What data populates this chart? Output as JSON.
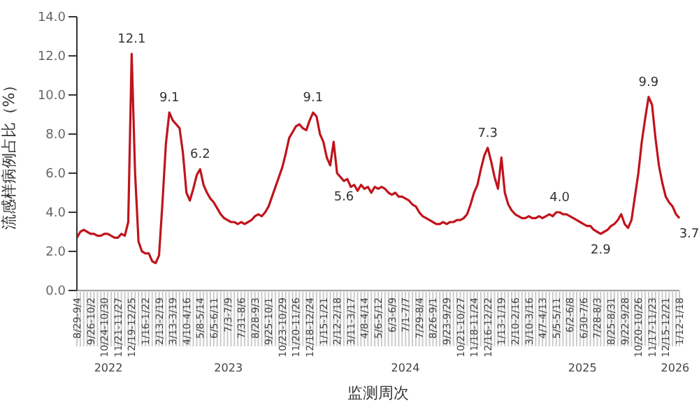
{
  "chart_data": {
    "type": "line",
    "ylabel": "流感样病例占比（%）",
    "xlabel": "监测周次",
    "categories": [
      "8/29-9/4",
      null,
      null,
      null,
      "9/26-10/2",
      null,
      null,
      null,
      "10/24-10/30",
      null,
      null,
      null,
      "11/21-11/27",
      null,
      null,
      null,
      "12/19-12/25",
      null,
      null,
      null,
      "1/16-1/22",
      null,
      null,
      null,
      "2/13-2/19",
      null,
      null,
      null,
      "3/13-3/19",
      null,
      null,
      null,
      "4/10-4/16",
      null,
      null,
      null,
      "5/8-5/14",
      null,
      null,
      null,
      "6/5-6/11",
      null,
      null,
      null,
      "7/3-7/9",
      null,
      null,
      null,
      "7/31-8/6",
      null,
      null,
      null,
      "8/28-9/3",
      null,
      null,
      null,
      "9/25-10/1",
      null,
      null,
      null,
      "10/23-10/29",
      null,
      null,
      null,
      "11/20-11/26",
      null,
      null,
      null,
      "12/18-12/24",
      null,
      null,
      null,
      "1/15-1/21",
      null,
      null,
      null,
      "2/12-2/18",
      null,
      null,
      null,
      "3/11-3/17",
      null,
      null,
      null,
      "4/8-4/14",
      null,
      null,
      null,
      "5/6-5/12",
      null,
      null,
      null,
      "6/3-6/9",
      null,
      null,
      null,
      "7/1-7/7",
      null,
      null,
      null,
      "7/29-8/4",
      null,
      null,
      null,
      "8/26-9/1",
      null,
      null,
      null,
      "9/23-9/29",
      null,
      null,
      null,
      "10/21-10/27",
      null,
      null,
      null,
      "11/18-11/24",
      null,
      null,
      null,
      "12/16-12/22",
      null,
      null,
      null,
      "1/13-1/19",
      null,
      null,
      null,
      "2/10-2/16",
      null,
      null,
      null,
      "3/10-3/16",
      null,
      null,
      null,
      "4/7-4/13",
      null,
      null,
      null,
      "5/5-5/11",
      null,
      null,
      null,
      "6/2-6/8",
      null,
      null,
      null,
      "6/30-7/6",
      null,
      null,
      null,
      "7/28-8/3",
      null,
      null,
      null,
      "8/25-8/31",
      null,
      null,
      null,
      "9/22-9/28",
      null,
      null,
      null,
      "10/20-10/26",
      null,
      null,
      null,
      "11/17-11/23",
      null,
      null,
      null,
      "12/15-12/21",
      null,
      null,
      null,
      "1/12-1/18"
    ],
    "series": [
      {
        "color": "#c0141c",
        "values": [
          2.7,
          3.0,
          3.1,
          3.0,
          2.9,
          2.9,
          2.8,
          2.8,
          2.9,
          2.9,
          2.8,
          2.7,
          2.7,
          2.9,
          2.8,
          3.5,
          12.1,
          6.0,
          2.5,
          2.0,
          1.9,
          1.9,
          1.5,
          1.4,
          1.8,
          4.5,
          7.5,
          9.1,
          8.7,
          8.5,
          8.3,
          7.0,
          5.0,
          4.6,
          5.2,
          5.9,
          6.2,
          5.4,
          5.0,
          4.7,
          4.5,
          4.2,
          3.9,
          3.7,
          3.6,
          3.5,
          3.5,
          3.4,
          3.5,
          3.4,
          3.5,
          3.6,
          3.8,
          3.9,
          3.8,
          4.0,
          4.3,
          4.8,
          5.3,
          5.8,
          6.3,
          7.0,
          7.8,
          8.1,
          8.4,
          8.5,
          8.3,
          8.2,
          8.7,
          9.1,
          8.9,
          8.0,
          7.6,
          6.8,
          6.4,
          7.6,
          6.0,
          5.8,
          5.6,
          5.7,
          5.3,
          5.4,
          5.1,
          5.4,
          5.2,
          5.3,
          5.0,
          5.3,
          5.2,
          5.3,
          5.2,
          5.0,
          4.9,
          5.0,
          4.8,
          4.8,
          4.7,
          4.6,
          4.4,
          4.3,
          4.0,
          3.8,
          3.7,
          3.6,
          3.5,
          3.4,
          3.4,
          3.5,
          3.4,
          3.5,
          3.5,
          3.6,
          3.6,
          3.7,
          3.9,
          4.4,
          5.0,
          5.4,
          6.2,
          6.9,
          7.3,
          6.6,
          5.8,
          5.2,
          6.8,
          5.0,
          4.4,
          4.1,
          3.9,
          3.8,
          3.7,
          3.7,
          3.8,
          3.7,
          3.7,
          3.8,
          3.7,
          3.8,
          3.9,
          3.8,
          4.0,
          4.0,
          3.9,
          3.9,
          3.8,
          3.7,
          3.6,
          3.5,
          3.4,
          3.3,
          3.3,
          3.1,
          3.0,
          2.9,
          3.0,
          3.1,
          3.3,
          3.4,
          3.6,
          3.9,
          3.4,
          3.2,
          3.6,
          4.8,
          6.0,
          7.6,
          8.8,
          9.9,
          9.5,
          7.8,
          6.4,
          5.5,
          4.8,
          4.5,
          4.3,
          3.9,
          3.7
        ],
        "value_labels": [
          null,
          null,
          null,
          null,
          null,
          null,
          null,
          null,
          null,
          null,
          null,
          null,
          null,
          null,
          null,
          null,
          "12.1",
          null,
          null,
          null,
          null,
          null,
          null,
          null,
          null,
          null,
          null,
          "9.1",
          null,
          null,
          null,
          null,
          null,
          null,
          null,
          null,
          "6.2",
          null,
          null,
          null,
          null,
          null,
          null,
          null,
          null,
          null,
          null,
          null,
          null,
          null,
          null,
          null,
          null,
          null,
          null,
          null,
          null,
          null,
          null,
          null,
          null,
          null,
          null,
          null,
          null,
          null,
          null,
          null,
          null,
          "9.1",
          null,
          null,
          null,
          null,
          null,
          null,
          null,
          null,
          "5.6",
          null,
          null,
          null,
          null,
          null,
          null,
          null,
          null,
          null,
          null,
          null,
          null,
          null,
          null,
          null,
          null,
          null,
          null,
          null,
          null,
          null,
          null,
          null,
          null,
          null,
          null,
          null,
          null,
          null,
          null,
          null,
          null,
          null,
          null,
          null,
          null,
          null,
          null,
          null,
          null,
          null,
          "7.3",
          null,
          null,
          null,
          null,
          null,
          null,
          null,
          null,
          null,
          null,
          null,
          null,
          null,
          null,
          null,
          null,
          null,
          null,
          null,
          null,
          "4.0",
          null,
          null,
          null,
          null,
          null,
          null,
          null,
          null,
          null,
          null,
          null,
          "2.9",
          null,
          null,
          null,
          null,
          null,
          null,
          null,
          null,
          null,
          null,
          null,
          null,
          null,
          "9.9",
          null,
          null,
          null,
          null,
          null,
          null,
          null,
          null,
          "3.7"
        ]
      }
    ],
    "ylim": [
      0,
      14
    ],
    "yticks": [
      {
        "value": 0,
        "label": "0.0"
      },
      {
        "value": 2,
        "label": "2.0"
      },
      {
        "value": 4,
        "label": "4.0"
      },
      {
        "value": 6,
        "label": "6.0"
      },
      {
        "value": 8,
        "label": "8.0"
      },
      {
        "value": 10,
        "label": "10.0"
      },
      {
        "value": 12,
        "label": "12.0"
      },
      {
        "value": 14,
        "label": "14.0"
      }
    ],
    "grid": false,
    "marker": "none",
    "line_style": "solid",
    "annotations": [
      "2022",
      "2023",
      "2024",
      "2025",
      "2026"
    ]
  }
}
